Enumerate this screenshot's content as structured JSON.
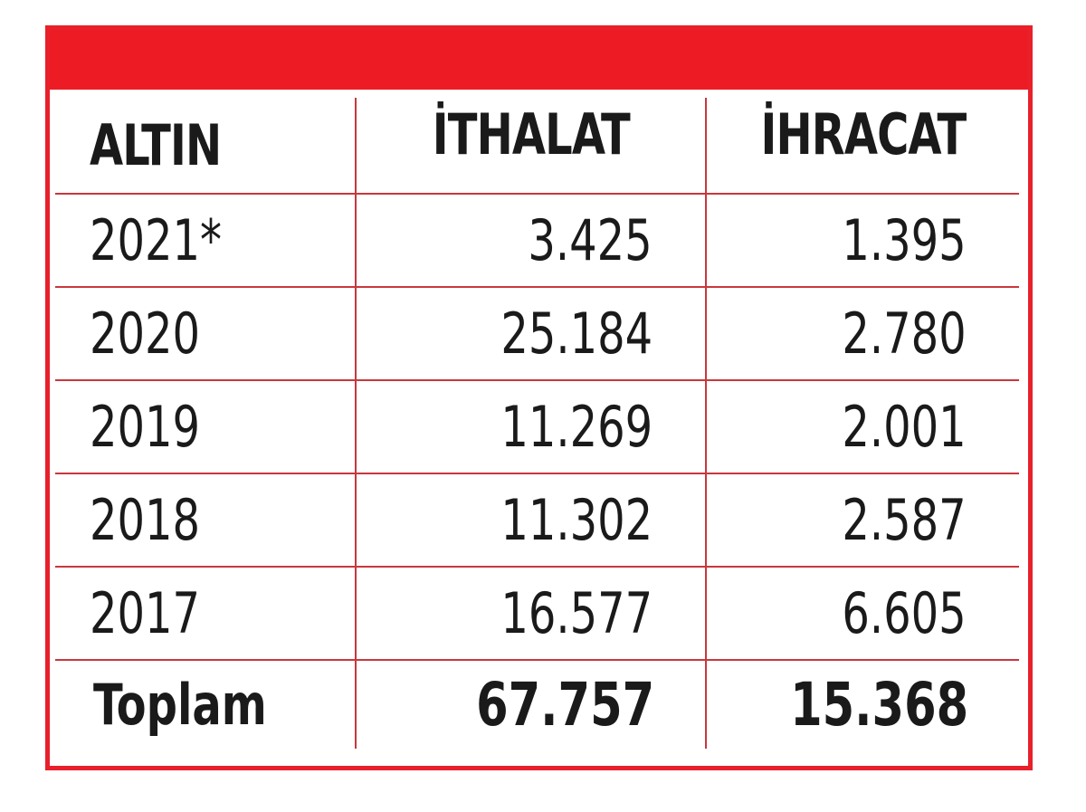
{
  "chart_data": {
    "type": "table",
    "columns": [
      "ALTIN",
      "İTHALAT",
      "İHRACAT"
    ],
    "rows": [
      {
        "year": "2021*",
        "ithalat": "3.425",
        "ihracat": "1.395"
      },
      {
        "year": "2020",
        "ithalat": "25.184",
        "ihracat": "2.780"
      },
      {
        "year": "2019",
        "ithalat": "11.269",
        "ihracat": "2.001"
      },
      {
        "year": "2018",
        "ithalat": "11.302",
        "ihracat": "2.587"
      },
      {
        "year": "2017",
        "ithalat": "16.577",
        "ihracat": "6.605"
      }
    ],
    "total": {
      "label": "Toplam",
      "ithalat": "67.757",
      "ihracat": "15.368"
    },
    "accent_color": "#ed1c24",
    "grid_line_color": "#c9373e"
  }
}
